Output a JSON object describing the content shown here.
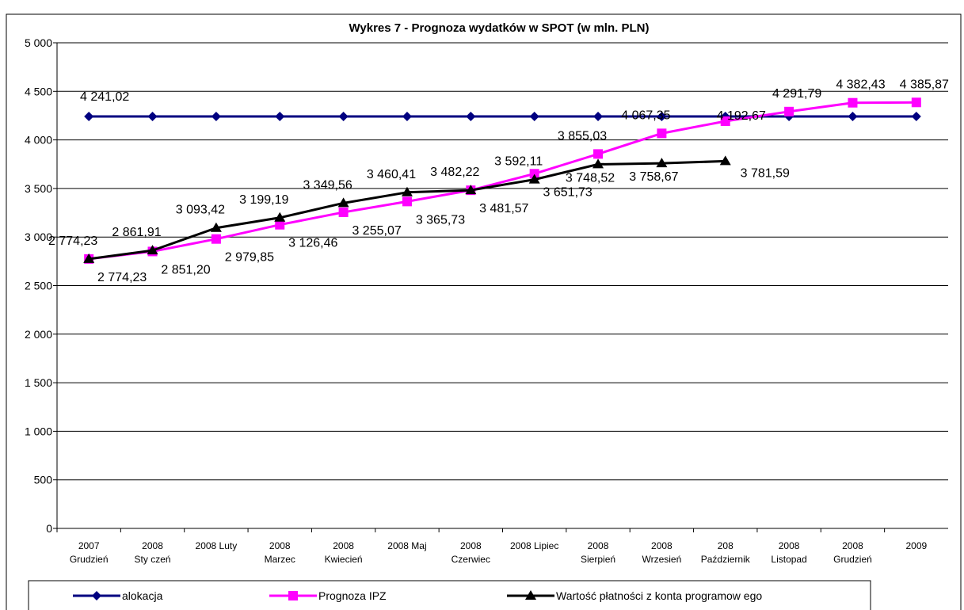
{
  "chart_data": {
    "type": "line",
    "title": "Wykres 7 - Prognoza wydatków w SPOT (w mln. PLN)",
    "categories": [
      "2007\nGrudzień",
      "2008\nSty czeń",
      "2008 Luty",
      "2008\nMarzec",
      "2008\nKwiecień",
      "2008 Maj",
      "2008\nCzerwiec",
      "2008 Lipiec",
      "2008\nSierpień",
      "2008\nWrzesień",
      "208\nPaździernik",
      "2008\nListopad",
      "2008\nGrudzień",
      "2009"
    ],
    "ylim": [
      0,
      5000
    ],
    "yticks": [
      0,
      500,
      {
        "value": 1000,
        "label": "1 000"
      },
      {
        "value": 1500,
        "label": "1 500"
      },
      {
        "value": 2000,
        "label": "2 000"
      },
      {
        "value": 2500,
        "label": "2 500"
      },
      {
        "value": 3000,
        "label": "3 000"
      },
      {
        "value": 3500,
        "label": "3 500"
      },
      {
        "value": 4000,
        "label": "4 000"
      },
      {
        "value": 4500,
        "label": "4 500"
      },
      {
        "value": 5000,
        "label": "5 000"
      }
    ],
    "grid": true,
    "legend": "bottom",
    "series": [
      {
        "name": "alokacja",
        "color": "#000080",
        "marker": "diamond",
        "values": [
          4241.02,
          4241.02,
          4241.02,
          4241.02,
          4241.02,
          4241.02,
          4241.02,
          4241.02,
          4241.02,
          4241.02,
          4241.02,
          4241.02,
          4241.02,
          4241.02
        ],
        "value_labels": [
          "4 241,02",
          null,
          null,
          null,
          null,
          null,
          null,
          null,
          null,
          null,
          null,
          null,
          null,
          null
        ]
      },
      {
        "name": "Prognoza IPZ",
        "color": "#ff00ff",
        "marker": "square",
        "values": [
          2774.23,
          2851.2,
          2979.85,
          3126.46,
          3255.07,
          3365.73,
          3481.57,
          3651.73,
          3855.03,
          4067.35,
          4192.67,
          4291.79,
          4382.43,
          4385.87
        ],
        "value_labels": [
          "2 774,23",
          "2 851,20",
          "2 979,85",
          "3 126,46",
          "3 255,07",
          "3 365,73",
          "3 481,57",
          "3 651,73",
          "3 855,03",
          "4 067,35",
          "4 192,67",
          "4 291,79",
          "4 382,43",
          "4 385,87"
        ]
      },
      {
        "name": "Wartość płatności z konta programow ego",
        "color": "#000000",
        "marker": "triangle",
        "values": [
          2774.23,
          2861.91,
          3093.42,
          3199.19,
          3349.56,
          3460.41,
          3482.22,
          3592.11,
          3748.52,
          3758.67,
          3781.59,
          null,
          null,
          null
        ],
        "value_labels": [
          "2 774,23",
          "2 861,91",
          "3 093,42",
          "3 199,19",
          "3 349,56",
          "3 460,41",
          "3 482,22",
          "3 592,11",
          "3 748,52",
          "3 758,67",
          "3 781,59",
          null,
          null,
          null
        ]
      }
    ]
  }
}
